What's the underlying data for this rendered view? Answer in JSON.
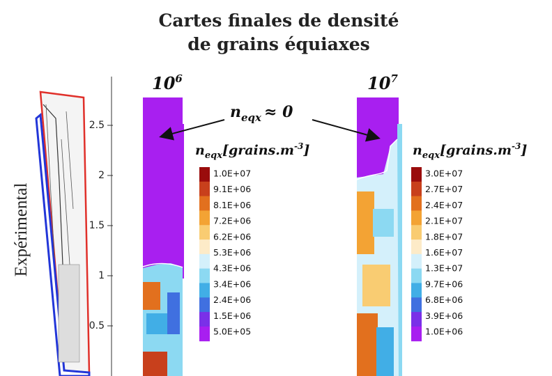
{
  "title": [
    "Cartes finales de densité",
    "de grains équiaxes"
  ],
  "side_label": "Expérimental",
  "axis_ticks": [
    2.5,
    2,
    1.5,
    1,
    0.5
  ],
  "annotation": {
    "base": "n",
    "sub": "eqx",
    "rest": "≈ 0"
  },
  "panels": [
    {
      "heading": {
        "base": "10",
        "exp": "6"
      },
      "legend": {
        "title": {
          "base": "n",
          "sub": "eqx",
          "mid": "[grains.m",
          "sup": "-3",
          "end": "]"
        },
        "labels": [
          "1.0E+07",
          "9.1E+06",
          "8.1E+06",
          "7.2E+06",
          "6.2E+06",
          "5.3E+06",
          "4.3E+06",
          "3.4E+06",
          "2.4E+06",
          "1.5E+06",
          "5.0E+05"
        ]
      }
    },
    {
      "heading": {
        "base": "10",
        "exp": "7"
      },
      "legend": {
        "title": {
          "base": "n",
          "sub": "eqx",
          "mid": "[grains.m",
          "sup": "-3",
          "end": "]"
        },
        "labels": [
          "3.0E+07",
          "2.7E+07",
          "2.4E+07",
          "2.1E+07",
          "1.8E+07",
          "1.6E+07",
          "1.3E+07",
          "9.7E+06",
          "6.8E+06",
          "3.9E+06",
          "1.0E+06"
        ]
      }
    }
  ],
  "colors": [
    "#9a0c0c",
    "#c8401c",
    "#e2701e",
    "#f3a334",
    "#f9cc72",
    "#fdebc8",
    "#d4f0fb",
    "#8cd9f2",
    "#41aee6",
    "#4070e0",
    "#7a30e8",
    "#a81ff0"
  ]
}
